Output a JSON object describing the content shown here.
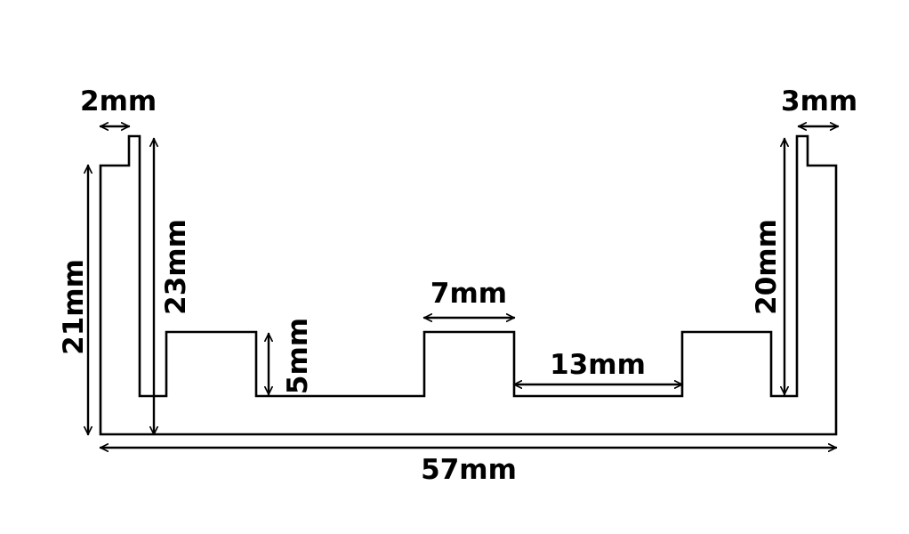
{
  "diagram": {
    "labels": {
      "top_left_width": "2mm",
      "top_right_width": "3mm",
      "left_outer_height": "21mm",
      "left_inner_height": "23mm",
      "pocket_depth": "5mm",
      "middle_tab_width": "7mm",
      "gap_width": "13mm",
      "right_inner_height": "20mm",
      "total_width": "57mm"
    },
    "colors": {
      "line": "#000000",
      "background": "#ffffff"
    }
  }
}
